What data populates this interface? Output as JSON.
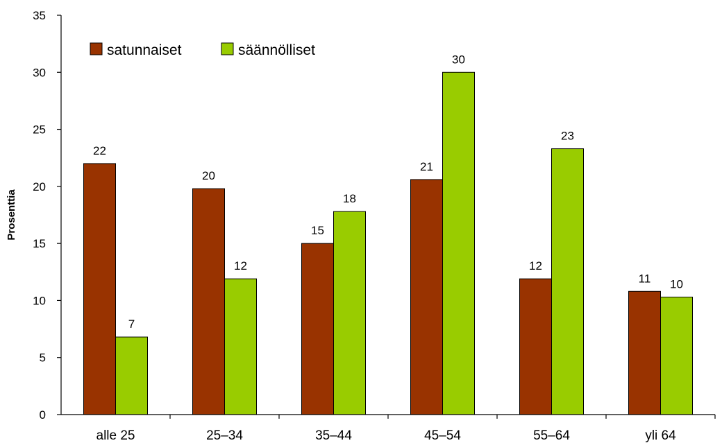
{
  "chart_data": {
    "type": "bar",
    "categories": [
      "alle 25",
      "25–34",
      "35–44",
      "45–54",
      "55–64",
      "yli 64"
    ],
    "series": [
      {
        "name": "satunnaiset",
        "color": "#993300",
        "values": [
          22,
          19.8,
          15,
          20.6,
          11.9,
          10.8
        ],
        "labels": [
          "22",
          "20",
          "15",
          "21",
          "12",
          "11"
        ]
      },
      {
        "name": "säännölliset",
        "color": "#99CC00",
        "values": [
          6.8,
          11.9,
          17.8,
          30,
          23.3,
          10.3
        ],
        "labels": [
          "7",
          "12",
          "18",
          "30",
          "23",
          "10"
        ]
      }
    ],
    "ylabel": "Prosenttia",
    "ylim": [
      0,
      35
    ],
    "yticks": [
      "0",
      "5",
      "10",
      "15",
      "20",
      "25",
      "30",
      "35"
    ],
    "grid": false,
    "legend": "top-left"
  }
}
